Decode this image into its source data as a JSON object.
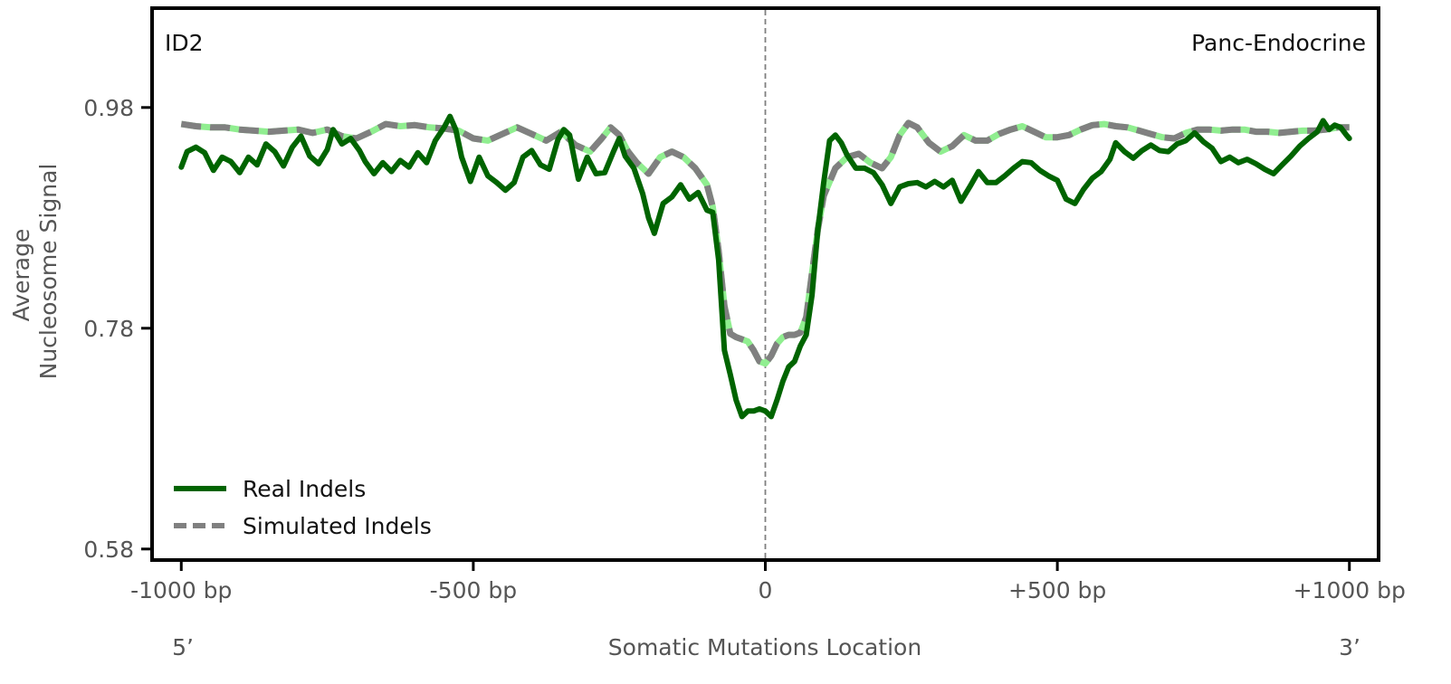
{
  "chart_data": {
    "type": "line",
    "panel_label": "ID2",
    "tissue_label": "Panc-Endocrine",
    "xlabel": "Somatic Mutations Location",
    "ylabel_lines": [
      "Average",
      "Nucleosome Signal"
    ],
    "strand_left": "5’",
    "strand_right": "3’",
    "xlim": [
      -1050,
      1050
    ],
    "ylim": [
      0.57,
      1.07
    ],
    "x_ticks": [
      {
        "value": -1000,
        "label": "-1000 bp"
      },
      {
        "value": -500,
        "label": "-500 bp"
      },
      {
        "value": 0,
        "label": "0"
      },
      {
        "value": 500,
        "label": "+500 bp"
      },
      {
        "value": 1000,
        "label": "+1000 bp"
      }
    ],
    "y_ticks": [
      {
        "value": 0.58,
        "label": "0.58"
      },
      {
        "value": 0.78,
        "label": "0.78"
      },
      {
        "value": 0.98,
        "label": "0.98"
      }
    ],
    "grid": false,
    "legend_placement": "lower-left",
    "center_line_x": 0,
    "series": [
      {
        "name": "Real Indels",
        "color": "#006400",
        "style": "solid",
        "points": [
          [
            -1000,
            0.926
          ],
          [
            -990,
            0.94
          ],
          [
            -975,
            0.944
          ],
          [
            -960,
            0.939
          ],
          [
            -945,
            0.923
          ],
          [
            -930,
            0.935
          ],
          [
            -915,
            0.931
          ],
          [
            -900,
            0.921
          ],
          [
            -885,
            0.935
          ],
          [
            -870,
            0.928
          ],
          [
            -855,
            0.947
          ],
          [
            -840,
            0.94
          ],
          [
            -825,
            0.927
          ],
          [
            -810,
            0.944
          ],
          [
            -795,
            0.954
          ],
          [
            -780,
            0.936
          ],
          [
            -765,
            0.929
          ],
          [
            -750,
            0.942
          ],
          [
            -740,
            0.96
          ],
          [
            -725,
            0.947
          ],
          [
            -710,
            0.952
          ],
          [
            -695,
            0.941
          ],
          [
            -685,
            0.931
          ],
          [
            -670,
            0.92
          ],
          [
            -655,
            0.93
          ],
          [
            -640,
            0.922
          ],
          [
            -625,
            0.932
          ],
          [
            -610,
            0.926
          ],
          [
            -595,
            0.939
          ],
          [
            -580,
            0.93
          ],
          [
            -565,
            0.95
          ],
          [
            -550,
            0.962
          ],
          [
            -540,
            0.972
          ],
          [
            -530,
            0.96
          ],
          [
            -520,
            0.935
          ],
          [
            -505,
            0.913
          ],
          [
            -490,
            0.935
          ],
          [
            -475,
            0.918
          ],
          [
            -460,
            0.912
          ],
          [
            -445,
            0.905
          ],
          [
            -430,
            0.912
          ],
          [
            -415,
            0.935
          ],
          [
            -400,
            0.941
          ],
          [
            -385,
            0.928
          ],
          [
            -370,
            0.924
          ],
          [
            -355,
            0.951
          ],
          [
            -345,
            0.96
          ],
          [
            -335,
            0.955
          ],
          [
            -320,
            0.915
          ],
          [
            -305,
            0.935
          ],
          [
            -290,
            0.92
          ],
          [
            -275,
            0.921
          ],
          [
            -260,
            0.94
          ],
          [
            -250,
            0.952
          ],
          [
            -240,
            0.936
          ],
          [
            -225,
            0.925
          ],
          [
            -210,
            0.902
          ],
          [
            -200,
            0.88
          ],
          [
            -190,
            0.866
          ],
          [
            -175,
            0.893
          ],
          [
            -160,
            0.899
          ],
          [
            -145,
            0.91
          ],
          [
            -130,
            0.897
          ],
          [
            -115,
            0.903
          ],
          [
            -100,
            0.887
          ],
          [
            -90,
            0.885
          ],
          [
            -80,
            0.842
          ],
          [
            -70,
            0.76
          ],
          [
            -60,
            0.738
          ],
          [
            -50,
            0.715
          ],
          [
            -40,
            0.7
          ],
          [
            -30,
            0.705
          ],
          [
            -20,
            0.705
          ],
          [
            -10,
            0.707
          ],
          [
            0,
            0.705
          ],
          [
            10,
            0.7
          ],
          [
            20,
            0.715
          ],
          [
            30,
            0.732
          ],
          [
            40,
            0.745
          ],
          [
            50,
            0.75
          ],
          [
            60,
            0.764
          ],
          [
            70,
            0.774
          ],
          [
            80,
            0.81
          ],
          [
            90,
            0.87
          ],
          [
            100,
            0.912
          ],
          [
            110,
            0.95
          ],
          [
            120,
            0.955
          ],
          [
            130,
            0.948
          ],
          [
            140,
            0.937
          ],
          [
            155,
            0.925
          ],
          [
            170,
            0.925
          ],
          [
            185,
            0.921
          ],
          [
            200,
            0.91
          ],
          [
            215,
            0.893
          ],
          [
            230,
            0.908
          ],
          [
            245,
            0.911
          ],
          [
            260,
            0.912
          ],
          [
            275,
            0.908
          ],
          [
            290,
            0.913
          ],
          [
            305,
            0.908
          ],
          [
            320,
            0.914
          ],
          [
            335,
            0.895
          ],
          [
            350,
            0.908
          ],
          [
            365,
            0.922
          ],
          [
            380,
            0.912
          ],
          [
            395,
            0.912
          ],
          [
            410,
            0.918
          ],
          [
            425,
            0.925
          ],
          [
            440,
            0.931
          ],
          [
            455,
            0.93
          ],
          [
            470,
            0.923
          ],
          [
            485,
            0.918
          ],
          [
            500,
            0.914
          ],
          [
            515,
            0.897
          ],
          [
            530,
            0.893
          ],
          [
            545,
            0.906
          ],
          [
            560,
            0.916
          ],
          [
            575,
            0.922
          ],
          [
            590,
            0.933
          ],
          [
            600,
            0.948
          ],
          [
            615,
            0.94
          ],
          [
            630,
            0.934
          ],
          [
            645,
            0.941
          ],
          [
            660,
            0.946
          ],
          [
            675,
            0.941
          ],
          [
            690,
            0.94
          ],
          [
            705,
            0.947
          ],
          [
            720,
            0.95
          ],
          [
            735,
            0.957
          ],
          [
            750,
            0.949
          ],
          [
            765,
            0.943
          ],
          [
            780,
            0.931
          ],
          [
            795,
            0.935
          ],
          [
            810,
            0.93
          ],
          [
            825,
            0.933
          ],
          [
            840,
            0.929
          ],
          [
            855,
            0.924
          ],
          [
            870,
            0.92
          ],
          [
            885,
            0.928
          ],
          [
            900,
            0.936
          ],
          [
            915,
            0.945
          ],
          [
            930,
            0.952
          ],
          [
            945,
            0.958
          ],
          [
            955,
            0.968
          ],
          [
            965,
            0.96
          ],
          [
            975,
            0.964
          ],
          [
            985,
            0.962
          ],
          [
            995,
            0.955
          ],
          [
            1000,
            0.952
          ]
        ]
      },
      {
        "name": "Simulated Indels",
        "color": "#808080",
        "accent_color": "#90ee90",
        "style": "dashed",
        "points": [
          [
            -1000,
            0.965
          ],
          [
            -975,
            0.963
          ],
          [
            -950,
            0.962
          ],
          [
            -925,
            0.962
          ],
          [
            -900,
            0.96
          ],
          [
            -875,
            0.959
          ],
          [
            -850,
            0.958
          ],
          [
            -825,
            0.959
          ],
          [
            -800,
            0.96
          ],
          [
            -775,
            0.957
          ],
          [
            -750,
            0.96
          ],
          [
            -725,
            0.954
          ],
          [
            -700,
            0.952
          ],
          [
            -675,
            0.958
          ],
          [
            -650,
            0.965
          ],
          [
            -625,
            0.963
          ],
          [
            -600,
            0.964
          ],
          [
            -575,
            0.962
          ],
          [
            -550,
            0.961
          ],
          [
            -525,
            0.959
          ],
          [
            -500,
            0.952
          ],
          [
            -475,
            0.95
          ],
          [
            -450,
            0.956
          ],
          [
            -425,
            0.962
          ],
          [
            -400,
            0.956
          ],
          [
            -375,
            0.95
          ],
          [
            -350,
            0.958
          ],
          [
            -325,
            0.946
          ],
          [
            -300,
            0.94
          ],
          [
            -280,
            0.952
          ],
          [
            -265,
            0.962
          ],
          [
            -250,
            0.955
          ],
          [
            -235,
            0.94
          ],
          [
            -220,
            0.93
          ],
          [
            -200,
            0.92
          ],
          [
            -180,
            0.935
          ],
          [
            -160,
            0.94
          ],
          [
            -140,
            0.935
          ],
          [
            -120,
            0.925
          ],
          [
            -100,
            0.91
          ],
          [
            -90,
            0.89
          ],
          [
            -80,
            0.85
          ],
          [
            -70,
            0.8
          ],
          [
            -60,
            0.775
          ],
          [
            -50,
            0.772
          ],
          [
            -40,
            0.77
          ],
          [
            -30,
            0.768
          ],
          [
            -20,
            0.76
          ],
          [
            -10,
            0.75
          ],
          [
            0,
            0.748
          ],
          [
            10,
            0.755
          ],
          [
            20,
            0.766
          ],
          [
            30,
            0.772
          ],
          [
            40,
            0.774
          ],
          [
            50,
            0.774
          ],
          [
            60,
            0.776
          ],
          [
            70,
            0.79
          ],
          [
            80,
            0.83
          ],
          [
            90,
            0.87
          ],
          [
            100,
            0.9
          ],
          [
            120,
            0.925
          ],
          [
            140,
            0.935
          ],
          [
            160,
            0.938
          ],
          [
            180,
            0.93
          ],
          [
            200,
            0.925
          ],
          [
            215,
            0.935
          ],
          [
            230,
            0.955
          ],
          [
            245,
            0.966
          ],
          [
            260,
            0.962
          ],
          [
            280,
            0.948
          ],
          [
            300,
            0.94
          ],
          [
            320,
            0.945
          ],
          [
            340,
            0.955
          ],
          [
            360,
            0.95
          ],
          [
            380,
            0.95
          ],
          [
            400,
            0.956
          ],
          [
            420,
            0.96
          ],
          [
            440,
            0.963
          ],
          [
            460,
            0.958
          ],
          [
            480,
            0.953
          ],
          [
            500,
            0.953
          ],
          [
            520,
            0.955
          ],
          [
            540,
            0.96
          ],
          [
            560,
            0.964
          ],
          [
            580,
            0.965
          ],
          [
            600,
            0.963
          ],
          [
            620,
            0.962
          ],
          [
            640,
            0.959
          ],
          [
            660,
            0.956
          ],
          [
            680,
            0.953
          ],
          [
            700,
            0.952
          ],
          [
            720,
            0.957
          ],
          [
            740,
            0.96
          ],
          [
            760,
            0.96
          ],
          [
            780,
            0.959
          ],
          [
            800,
            0.96
          ],
          [
            820,
            0.96
          ],
          [
            840,
            0.958
          ],
          [
            860,
            0.958
          ],
          [
            880,
            0.957
          ],
          [
            900,
            0.958
          ],
          [
            920,
            0.959
          ],
          [
            940,
            0.959
          ],
          [
            960,
            0.96
          ],
          [
            980,
            0.962
          ],
          [
            1000,
            0.962
          ]
        ]
      }
    ]
  }
}
